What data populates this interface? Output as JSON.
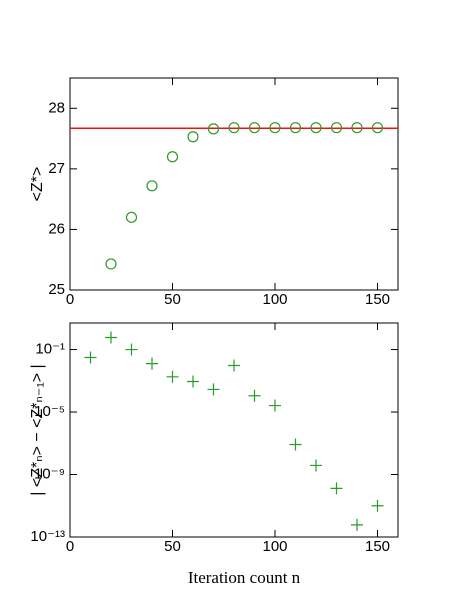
{
  "chart_data": [
    {
      "type": "scatter",
      "ylabel": "<Z*>",
      "x": [
        20,
        30,
        40,
        50,
        60,
        70,
        80,
        90,
        100,
        110,
        120,
        130,
        140,
        150
      ],
      "series": [
        {
          "color": "#2a9a2a",
          "marker": "circle",
          "values": [
            25.43,
            26.2,
            26.72,
            27.2,
            27.53,
            27.66,
            27.68,
            27.68,
            27.68,
            27.68,
            27.68,
            27.68,
            27.68,
            27.68
          ]
        }
      ],
      "hline": {
        "value": 27.67,
        "color": "#ee1111"
      },
      "xlim": [
        0,
        160
      ],
      "xticks": [
        0,
        50,
        100,
        150
      ],
      "ylim": [
        25,
        28.5
      ],
      "yticks": [
        25,
        26,
        27,
        28
      ]
    },
    {
      "type": "scatter",
      "ylabel": "| <Z*ₙ> − <Z*ₙ₋₁> |",
      "xlabel": "Iteration count n",
      "log_y": true,
      "x": [
        10,
        20,
        30,
        40,
        50,
        60,
        70,
        80,
        90,
        100,
        110,
        120,
        130,
        140,
        150
      ],
      "series": [
        {
          "color": "#2a9a2a",
          "marker": "plus",
          "values": [
            0.031,
            0.59,
            0.1,
            0.0126,
            0.0018,
            0.0009,
            0.00028,
            0.0095,
            0.00011,
            2.6e-05,
            8.3e-08,
            3.8e-09,
            1.3e-10,
            6e-13,
            1e-11
          ]
        }
      ],
      "xlim": [
        0,
        160
      ],
      "xticks": [
        0,
        50,
        100,
        150
      ],
      "ylim": [
        1e-13,
        5
      ],
      "yticks": [
        {
          "value": 0.1,
          "label": "10⁻¹"
        },
        {
          "value": 1e-05,
          "label": "10⁻⁵"
        },
        {
          "value": 1e-09,
          "label": "10⁻⁹"
        },
        {
          "value": 1e-13,
          "label": "10⁻¹³"
        }
      ]
    }
  ]
}
